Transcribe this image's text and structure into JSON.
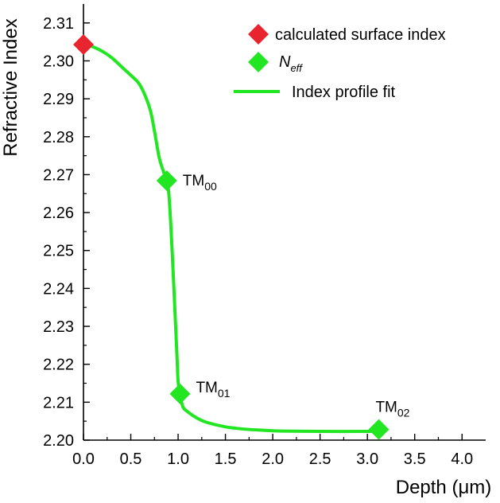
{
  "chart_data": {
    "type": "scatter",
    "title": "",
    "xlabel": "Depth (μm)",
    "ylabel": "Refractive Index",
    "xlim": [
      0.0,
      4.25
    ],
    "ylim": [
      2.2,
      2.315
    ],
    "x_ticks": [
      "0.0",
      "0.5",
      "1.0",
      "1.5",
      "2.0",
      "2.5",
      "3.0",
      "3.5",
      "4.0"
    ],
    "y_ticks": [
      "2.20",
      "2.21",
      "2.22",
      "2.23",
      "2.24",
      "2.25",
      "2.26",
      "2.27",
      "2.28",
      "2.29",
      "2.30",
      "2.31"
    ],
    "legend_position": "top-right",
    "series": [
      {
        "name": "calculated surface index",
        "kind": "scatter",
        "marker": "diamond",
        "color": "#e8242e",
        "x": [
          0.0
        ],
        "y": [
          2.3043
        ]
      },
      {
        "name_main": "N",
        "name_sub": "eff",
        "kind": "scatter",
        "marker": "diamond",
        "color": "#22e622",
        "x": [
          0.88,
          1.02,
          3.12
        ],
        "y": [
          2.2684,
          2.2122,
          2.2028
        ],
        "labels": [
          {
            "main": "TM",
            "sub": "00"
          },
          {
            "main": "TM",
            "sub": "01"
          },
          {
            "main": "TM",
            "sub": "02"
          }
        ]
      },
      {
        "name": "Index profile fit",
        "kind": "line",
        "color": "#22e622",
        "x": [
          0.0,
          0.1,
          0.2,
          0.3,
          0.4,
          0.5,
          0.6,
          0.7,
          0.75,
          0.8,
          0.85,
          0.88,
          0.9,
          0.92,
          0.95,
          0.97,
          0.99,
          1.0,
          1.02,
          1.05,
          1.1,
          1.2,
          1.3,
          1.5,
          1.7,
          1.9,
          2.1,
          2.5,
          3.0,
          3.12
        ],
        "y": [
          2.3043,
          2.3037,
          2.3025,
          2.3008,
          2.2985,
          2.2962,
          2.2935,
          2.2875,
          2.2815,
          2.2745,
          2.2705,
          2.2684,
          2.2655,
          2.258,
          2.243,
          2.232,
          2.221,
          2.2155,
          2.2122,
          2.2088,
          2.2075,
          2.2058,
          2.2047,
          2.2035,
          2.2029,
          2.2026,
          2.2024,
          2.2023,
          2.2023,
          2.2023
        ]
      }
    ]
  }
}
